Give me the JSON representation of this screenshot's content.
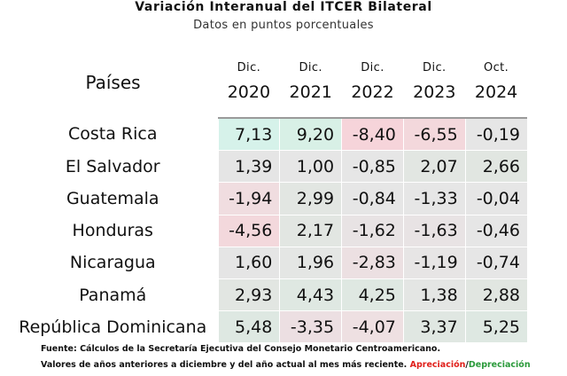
{
  "title": "Variación Interanual del ITCER Bilateral",
  "subtitle": "Datos en puntos porcentuales",
  "chart_data": {
    "type": "table",
    "row_header": "Países",
    "columns": [
      {
        "month": "Dic.",
        "year": "2020"
      },
      {
        "month": "Dic.",
        "year": "2021"
      },
      {
        "month": "Dic.",
        "year": "2022"
      },
      {
        "month": "Dic.",
        "year": "2023"
      },
      {
        "month": "Oct.",
        "year": "2024"
      }
    ],
    "rows": [
      {
        "country": "Costa Rica",
        "values": [
          "7,13",
          "9,20",
          "-8,40",
          "-6,55",
          "-0,19"
        ]
      },
      {
        "country": "El Salvador",
        "values": [
          "1,39",
          "1,00",
          "-0,85",
          "2,07",
          "2,66"
        ]
      },
      {
        "country": "Guatemala",
        "values": [
          "-1,94",
          "2,99",
          "-0,84",
          "-1,33",
          "-0,04"
        ]
      },
      {
        "country": "Honduras",
        "values": [
          "-4,56",
          "2,17",
          "-1,62",
          "-1,63",
          "-0,46"
        ]
      },
      {
        "country": "Nicaragua",
        "values": [
          "1,60",
          "1,96",
          "-2,83",
          "-1,19",
          "-0,74"
        ]
      },
      {
        "country": "Panamá",
        "values": [
          "2,93",
          "4,43",
          "4,25",
          "1,38",
          "2,88"
        ]
      },
      {
        "country": "República Dominicana",
        "values": [
          "5,48",
          "-3,35",
          "-4,07",
          "3,37",
          "5,25"
        ]
      }
    ],
    "cell_colors": [
      [
        "#d6f2ea",
        "#d8f0e6",
        "#f6d4da",
        "#f3d8dc",
        "#e6e6e6"
      ],
      [
        "#e5e5e5",
        "#e6e6e6",
        "#e6e6e6",
        "#e2e6e2",
        "#e1e6e1"
      ],
      [
        "#f0dde0",
        "#e2e6e2",
        "#e6e6e6",
        "#e6e6e6",
        "#e6e6e6"
      ],
      [
        "#f3d8dc",
        "#e2e6e2",
        "#e8e3e4",
        "#e8e3e4",
        "#e6e6e6"
      ],
      [
        "#e5e5e5",
        "#e4e6e4",
        "#ece0e2",
        "#e7e5e5",
        "#e6e6e6"
      ],
      [
        "#e2e6e2",
        "#dfe8e2",
        "#dfe8e2",
        "#e4e6e4",
        "#e1e6e1"
      ],
      [
        "#dee8e2",
        "#ecdfe2",
        "#eee0e2",
        "#e0e7e2",
        "#dee8e2"
      ]
    ]
  },
  "notes": {
    "source": "Fuente: Cálculos de la Secretaría Ejecutiva del Consejo Monetario Centroamericano.",
    "values_text": "Valores de años anteriores a diciembre y del año actual al mes más reciente. ",
    "apreciacion": "Apreciación",
    "separator": "/",
    "depreciacion": "Depreciación",
    "apreciacion_color": "#e0201b",
    "depreciacion_color": "#2a9a3a"
  }
}
